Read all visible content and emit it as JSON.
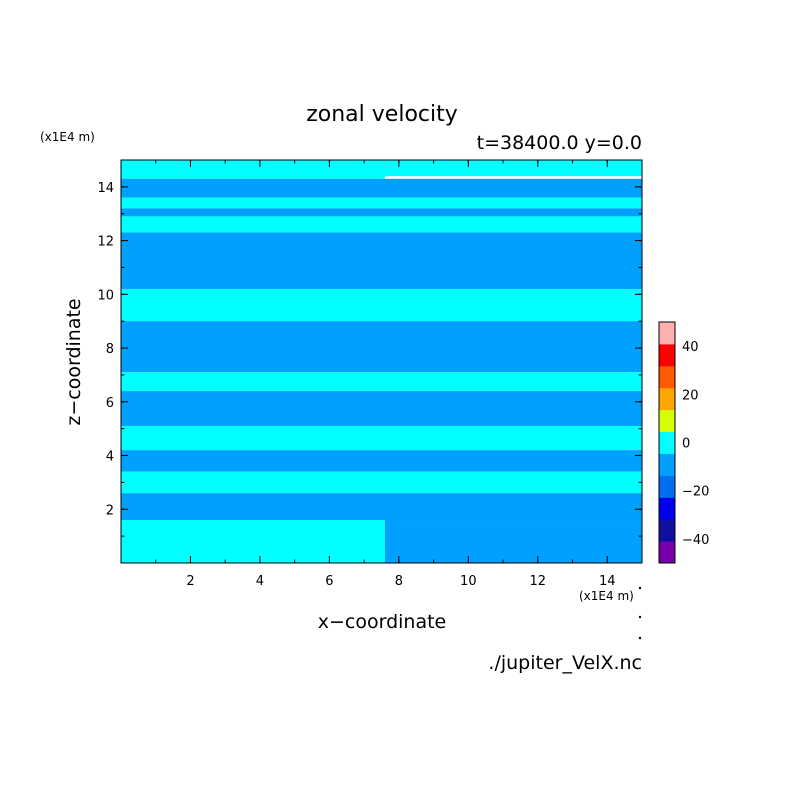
{
  "chart_data": {
    "type": "heatmap",
    "title": "zonal velocity",
    "subtitle": "t=38400.0 y=0.0",
    "xlabel": "x−coordinate",
    "ylabel": "z−coordinate",
    "x_unit": "(x1E4 m)",
    "y_unit": "(x1E4 m)",
    "source_file": "./jupiter_VelX.nc",
    "xlim": [
      0,
      15
    ],
    "ylim": [
      0,
      15
    ],
    "x_ticks": [
      2,
      4,
      6,
      8,
      10,
      12,
      14
    ],
    "y_ticks": [
      2,
      4,
      6,
      8,
      10,
      12,
      14
    ],
    "colorbar": {
      "range": [
        -50,
        50
      ],
      "step": 10,
      "labels": [
        40,
        20,
        0,
        -20,
        -40
      ],
      "colors": [
        "#7700aa",
        "#1010a0",
        "#0000ee",
        "#0070f0",
        "#00a0ff",
        "#00ffff",
        "#d4ff00",
        "#ffa500",
        "#ff5a00",
        "#ff0000",
        "#ffb0b0"
      ]
    },
    "field_values": {
      "negative_band": -5,
      "positive_band": 5
    },
    "bands": [
      {
        "x": [
          0,
          7.6
        ],
        "y_top": 15,
        "y_bot": 14.3,
        "value": 5
      },
      {
        "x": [
          7.6,
          15
        ],
        "y_top": 15,
        "y_bot": 14.4,
        "value": 5
      },
      {
        "x": [
          0,
          15
        ],
        "y_top": 14.3,
        "y_bot": 13.6,
        "value": -5
      },
      {
        "x": [
          0,
          15
        ],
        "y_top": 13.6,
        "y_bot": 13.2,
        "value": 5
      },
      {
        "x": [
          0,
          15
        ],
        "y_top": 13.2,
        "y_bot": 12.9,
        "value": -5
      },
      {
        "x": [
          0,
          15
        ],
        "y_top": 12.9,
        "y_bot": 12.3,
        "value": 5
      },
      {
        "x": [
          0,
          15
        ],
        "y_top": 12.3,
        "y_bot": 10.2,
        "value": -5
      },
      {
        "x": [
          0,
          15
        ],
        "y_top": 10.2,
        "y_bot": 9.0,
        "value": 5
      },
      {
        "x": [
          0,
          15
        ],
        "y_top": 9.0,
        "y_bot": 7.1,
        "value": -5
      },
      {
        "x": [
          0,
          15
        ],
        "y_top": 7.1,
        "y_bot": 6.4,
        "value": 5
      },
      {
        "x": [
          0,
          15
        ],
        "y_top": 6.4,
        "y_bot": 5.1,
        "value": -5
      },
      {
        "x": [
          0,
          15
        ],
        "y_top": 5.1,
        "y_bot": 4.2,
        "value": 5
      },
      {
        "x": [
          0,
          15
        ],
        "y_top": 4.2,
        "y_bot": 3.4,
        "value": -5
      },
      {
        "x": [
          0,
          15
        ],
        "y_top": 3.4,
        "y_bot": 2.6,
        "value": 5
      },
      {
        "x": [
          0,
          15
        ],
        "y_top": 2.6,
        "y_bot": 1.6,
        "value": -5
      },
      {
        "x": [
          0,
          7.6
        ],
        "y_top": 1.6,
        "y_bot": 0,
        "value": 5
      },
      {
        "x": [
          7.6,
          15
        ],
        "y_top": 1.6,
        "y_bot": 0,
        "value": -5
      }
    ]
  }
}
